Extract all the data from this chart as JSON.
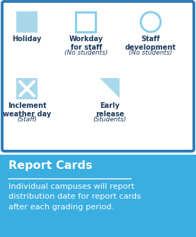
{
  "bg_color": "#ffffff",
  "border_color": "#2b7bb9",
  "bottom_bg_color": "#3aaee0",
  "text_dark": "#1a3a5c",
  "text_white": "#ffffff",
  "holiday_fill": "#a8d8ea",
  "workday_edge": "#87ceeb",
  "staff_edge": "#87ceeb",
  "inclement_fill": "#a8d8ea",
  "early_fill": "#a8d8ea",
  "report_title": "Report Cards",
  "report_body": "Individual campuses will report\ndistribution date for report cards\nafter each grading period.",
  "holiday_label": "Holiday",
  "workday_line1": "Workday",
  "workday_line2": "for staff",
  "workday_sub": "(No students)",
  "staff_line1": "Staff",
  "staff_line2": "development",
  "staff_sub": "(No students)",
  "inclement_line1": "Inclement",
  "inclement_line2": "weather day",
  "inclement_sub": "(Staff)",
  "early_line1": "Early",
  "early_line2": "release",
  "early_sub": "(Students)"
}
